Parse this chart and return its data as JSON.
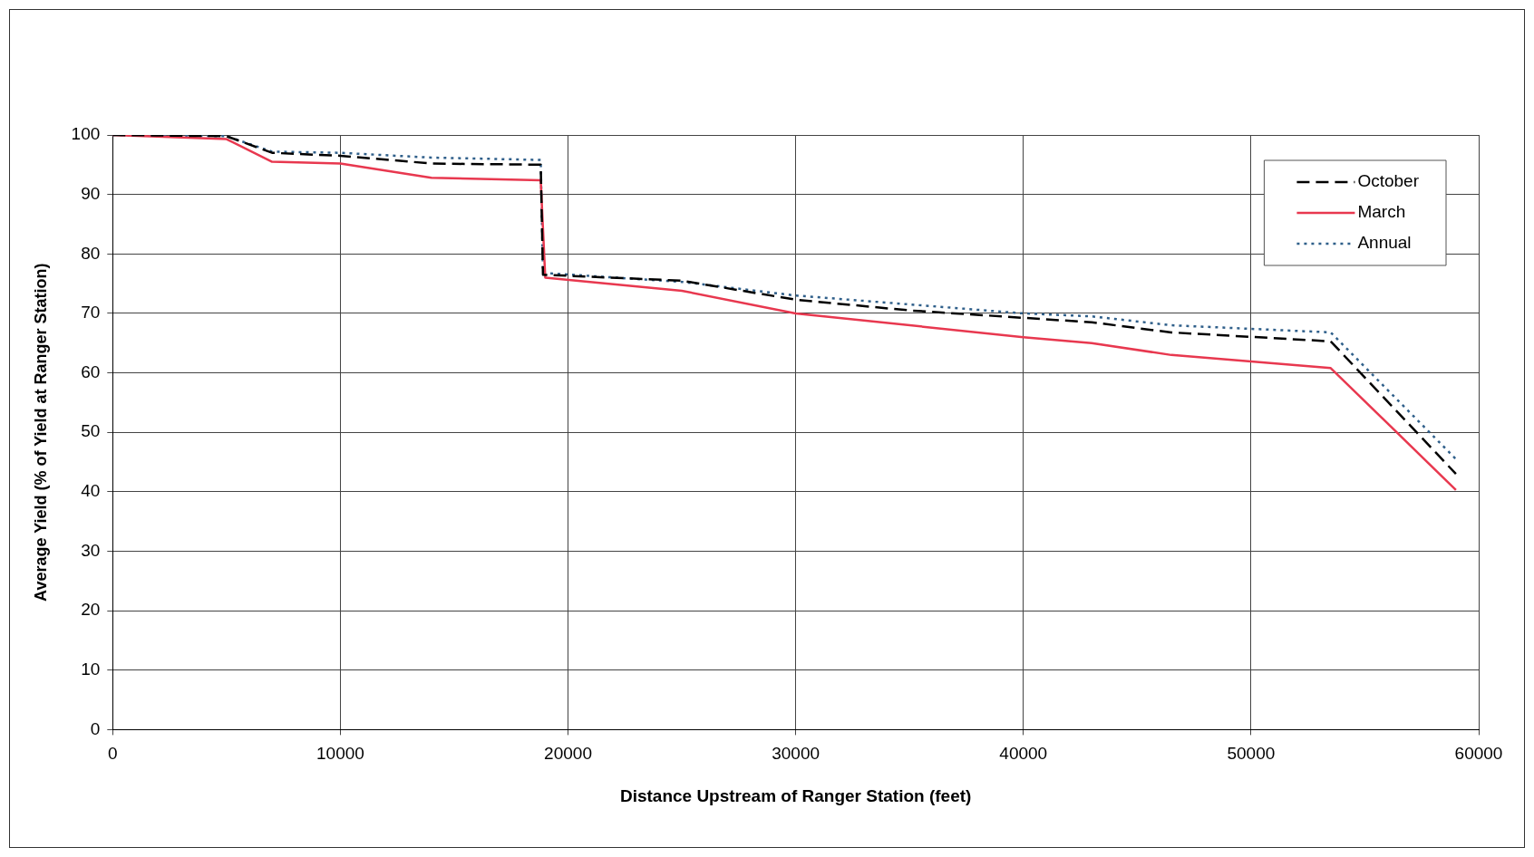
{
  "chart_data": {
    "type": "line",
    "xlabel": "Distance Upstream of Ranger Station (feet)",
    "ylabel": "Average Yield (% of Yield at Ranger Station)",
    "xlim": [
      0,
      60000
    ],
    "xticks": [
      0,
      10000,
      20000,
      30000,
      40000,
      50000,
      60000
    ],
    "ylim": [
      0,
      100
    ],
    "yticks": [
      0,
      10,
      20,
      30,
      40,
      50,
      60,
      70,
      80,
      90,
      100
    ],
    "grid": true,
    "legend": "top right",
    "marker": "none",
    "series": [
      {
        "name": "October",
        "color": "#000000",
        "line_style": "dashed",
        "x": [
          0,
          5000,
          7000,
          10000,
          14000,
          18800,
          18900,
          25000,
          30000,
          35000,
          43000,
          46500,
          53500,
          59000
        ],
        "values": [
          100,
          99.8,
          97,
          96.5,
          95.2,
          95,
          76.5,
          75.5,
          72.3,
          70.5,
          68.5,
          66.8,
          65.3,
          43
        ]
      },
      {
        "name": "March",
        "color": "#e8384f",
        "line_style": "solid",
        "x": [
          0,
          5000,
          7000,
          10000,
          14000,
          18800,
          19000,
          25000,
          30000,
          40000,
          43000,
          46500,
          53500,
          59000
        ],
        "values": [
          100,
          99.3,
          95.5,
          95.2,
          92.8,
          92.4,
          76,
          73.8,
          70,
          66,
          65,
          63,
          60.8,
          40.3
        ]
      },
      {
        "name": "Annual",
        "color": "#2f5f8a",
        "line_style": "dotted",
        "x": [
          0,
          5000,
          7000,
          10000,
          14000,
          18800,
          18900,
          25000,
          30000,
          40000,
          43000,
          46500,
          53500,
          59000
        ],
        "values": [
          100,
          99.8,
          97.2,
          97,
          96.2,
          95.8,
          76.8,
          75.3,
          73,
          70,
          69.5,
          68,
          66.8,
          45.5
        ]
      }
    ]
  }
}
